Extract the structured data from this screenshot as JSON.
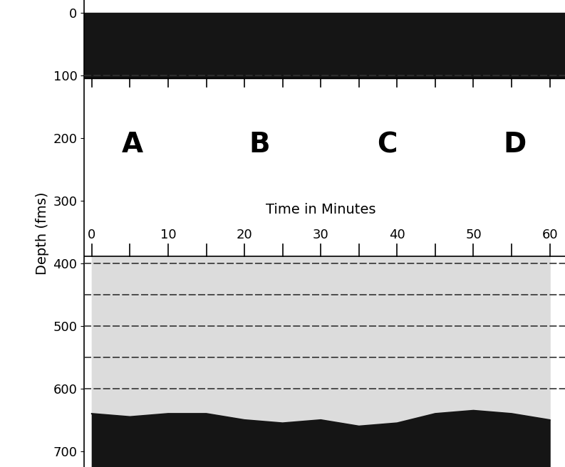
{
  "chart_data": {
    "type": "echogram",
    "ylabel": "Depth (fms)",
    "xlabel": "Time in Minutes",
    "ylim": [
      725,
      -20
    ],
    "yticks": [
      0,
      100,
      200,
      300,
      400,
      500,
      600,
      700
    ],
    "xlim": [
      -1,
      62
    ],
    "xticks": [
      0,
      10,
      20,
      30,
      40,
      50,
      60
    ],
    "annotations": [
      "A",
      "B",
      "C",
      "D"
    ],
    "scale_lines": [
      100,
      400,
      450,
      500,
      550,
      600
    ],
    "surface_layer": [
      0,
      105
    ],
    "bottom": {
      "x": [
        0,
        5,
        10,
        15,
        20,
        25,
        30,
        35,
        40,
        45,
        50,
        55,
        60
      ],
      "depth": [
        640,
        645,
        640,
        640,
        650,
        655,
        650,
        660,
        655,
        640,
        635,
        640,
        650
      ]
    },
    "color": "#151515"
  }
}
